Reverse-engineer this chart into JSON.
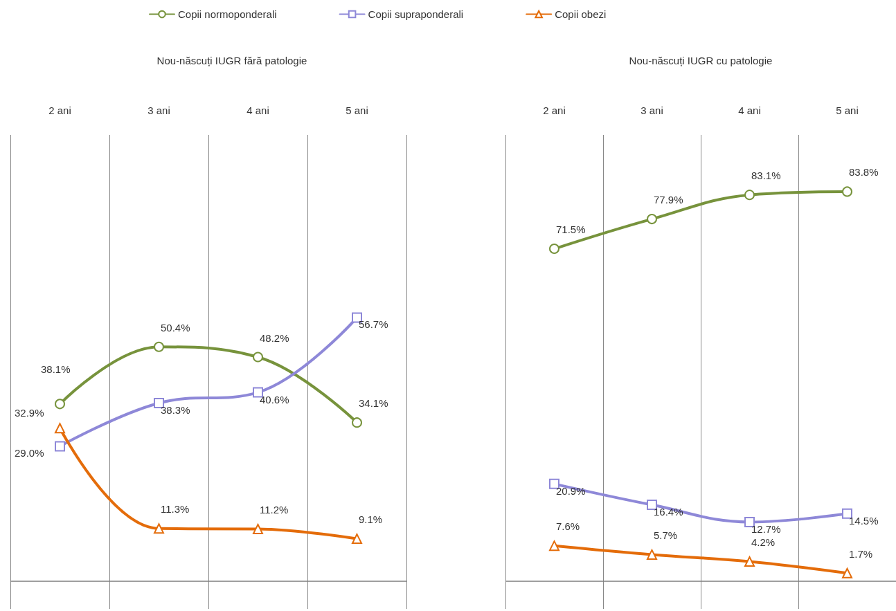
{
  "chart_data": [
    {
      "type": "line",
      "title": "Nou-născuți IUGR fără patologie",
      "categories": [
        "2 ani",
        "3 ani",
        "4 ani",
        "5 ani"
      ],
      "ylim": [
        -6,
        96
      ],
      "tick_labels": "x",
      "grid": "x",
      "legend": "top",
      "line_style": "solid",
      "ref_lines": [
        {
          "axis": "y",
          "value": 0,
          "color": "#7f7f7f"
        }
      ],
      "series": [
        {
          "name": "Copii normoponderali",
          "color": "#77933c",
          "marker": "circle",
          "values": [
            38.1,
            50.4,
            48.2,
            34.1
          ],
          "value_labels": [
            "38.1%",
            "50.4%",
            "48.2%",
            "34.1%"
          ]
        },
        {
          "name": "Copii supraponderali",
          "color": "#8e88d8",
          "marker": "square",
          "values": [
            29.0,
            38.3,
            40.6,
            56.7
          ],
          "value_labels": [
            "29.0%",
            "38.3%",
            "40.6%",
            "56.7%"
          ]
        },
        {
          "name": "Copii obezi",
          "color": "#e46c0a",
          "marker": "triangle",
          "values": [
            32.9,
            11.3,
            11.2,
            9.1
          ],
          "value_labels": [
            "32.9%",
            "11.3%",
            "11.2%",
            "9.1%"
          ]
        }
      ]
    },
    {
      "type": "line",
      "title": "Nou-născuți IUGR cu patologie",
      "categories": [
        "2 ani",
        "3 ani",
        "4 ani",
        "5 ani"
      ],
      "ylim": [
        -6,
        96
      ],
      "tick_labels": "x",
      "grid": "x",
      "line_style": "solid",
      "ref_lines": [
        {
          "axis": "y",
          "value": 0,
          "color": "#7f7f7f"
        }
      ],
      "series": [
        {
          "color": "#77933c",
          "marker": "circle",
          "values": [
            71.5,
            77.9,
            83.1,
            83.8
          ],
          "value_labels": [
            "71.5%",
            "77.9%",
            "83.1%",
            "83.8%"
          ]
        },
        {
          "color": "#8e88d8",
          "marker": "square",
          "values": [
            20.9,
            16.4,
            12.7,
            14.5
          ],
          "value_labels": [
            "20.9%",
            "16.4%",
            "12.7%",
            "14.5%"
          ]
        },
        {
          "color": "#e46c0a",
          "marker": "triangle",
          "values": [
            7.6,
            5.7,
            4.2,
            1.7
          ],
          "value_labels": [
            "7.6%",
            "5.7%",
            "4.2%",
            "1.7%"
          ]
        }
      ]
    }
  ]
}
